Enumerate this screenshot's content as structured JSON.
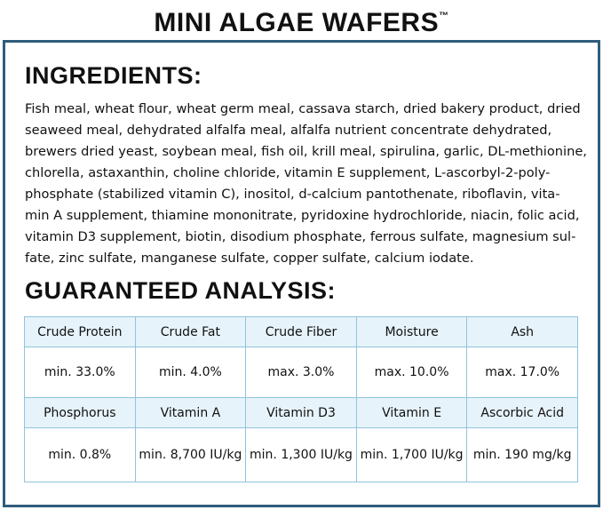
{
  "header": {
    "title": "MINI ALGAE WAFERS",
    "trademark": "™"
  },
  "ingredients": {
    "heading": "INGREDIENTS:",
    "lines": [
      "Fish meal, wheat flour, wheat germ meal, cassava starch, dried bakery product, dried",
      "seaweed meal, dehydrated alfalfa meal, alfalfa nutrient concentrate dehydrated,",
      "brewers dried yeast, soybean meal, fish oil, krill meal, spirulina, garlic, DL-methionine,",
      "chlorella, astaxanthin, choline chloride, vitamin E supplement, L-ascorbyl-2-poly-",
      "phosphate (stabilized vitamin C), inositol, d-calcium pantothenate, riboflavin, vita-",
      "min A supplement, thiamine mononitrate, pyridoxine hydrochloride, niacin, folic acid,",
      "vitamin D3 supplement, biotin, disodium phosphate, ferrous sulfate, magnesium sul-",
      "fate, zinc sulfate, manganese sulfate, copper sulfate, calcium iodate."
    ]
  },
  "analysis": {
    "heading": "GUARANTEED ANALYSIS:",
    "rows": [
      [
        "Crude Protein",
        "Crude Fat",
        "Crude Fiber",
        "Moisture",
        "Ash"
      ],
      [
        "min. 33.0%",
        "min. 4.0%",
        "max. 3.0%",
        "max. 10.0%",
        "max. 17.0%"
      ],
      [
        "Phosphorus",
        "Vitamin A",
        "Vitamin D3",
        "Vitamin E",
        "Ascorbic Acid"
      ],
      [
        "min. 0.8%",
        "min. 8,700 IU/kg",
        "min. 1,300 IU/kg",
        "min. 1,700 IU/kg",
        "min. 190 mg/kg"
      ]
    ]
  }
}
